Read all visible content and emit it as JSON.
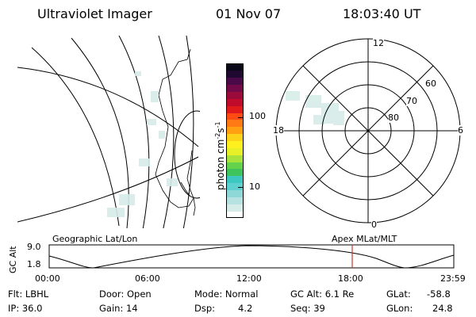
{
  "header": {
    "instrument": "Ultraviolet Imager",
    "date": "01 Nov 07",
    "time": "18:03:40 UT"
  },
  "colorbar": {
    "label": "photon cm",
    "exp1": "-2",
    "mid": "s",
    "exp2": "-1",
    "ticks": [
      "100",
      "10"
    ],
    "colors": [
      "#ffffff",
      "#d6ece8",
      "#b8e2e2",
      "#8fd8d8",
      "#5fd0d0",
      "#3cc8c0",
      "#3ec45a",
      "#64d24a",
      "#a8e23a",
      "#e8f028",
      "#fff01e",
      "#ffd21a",
      "#ffa012",
      "#ff7a14",
      "#ff4a14",
      "#e01a1a",
      "#c00c2a",
      "#9a0a3a",
      "#720a4a",
      "#4a0a4a",
      "#200830",
      "#080818"
    ]
  },
  "polar": {
    "lat_labels": [
      "60",
      "70",
      "80"
    ],
    "mlt_labels": {
      "top": "12",
      "left": "18",
      "right": "6",
      "bottom": "0"
    }
  },
  "timeline": {
    "left_label": "Geographic Lat/Lon",
    "right_label": "Apex MLat/MLT",
    "y_axis_label": "GC Alt",
    "y_ticks": [
      "9.0",
      "1.8"
    ],
    "x_ticks": [
      "00:00",
      "06:00",
      "12:00",
      "18:00",
      "23:59"
    ],
    "marker_color": "#c0392b"
  },
  "info": {
    "flt": "Flt: LBHL",
    "ip": "IP: 36.0",
    "door": "Door: Open",
    "gain": "Gain: 14",
    "mode": "Mode: Normal",
    "dsp_label": "Dsp:",
    "dsp_value": "4.2",
    "gc_alt": "GC Alt: 6.1 Re",
    "seq": "Seq: 39",
    "glat_label": "GLat:",
    "glat_value": "-58.8",
    "glon_label": "GLon:",
    "glon_value": "24.8"
  }
}
